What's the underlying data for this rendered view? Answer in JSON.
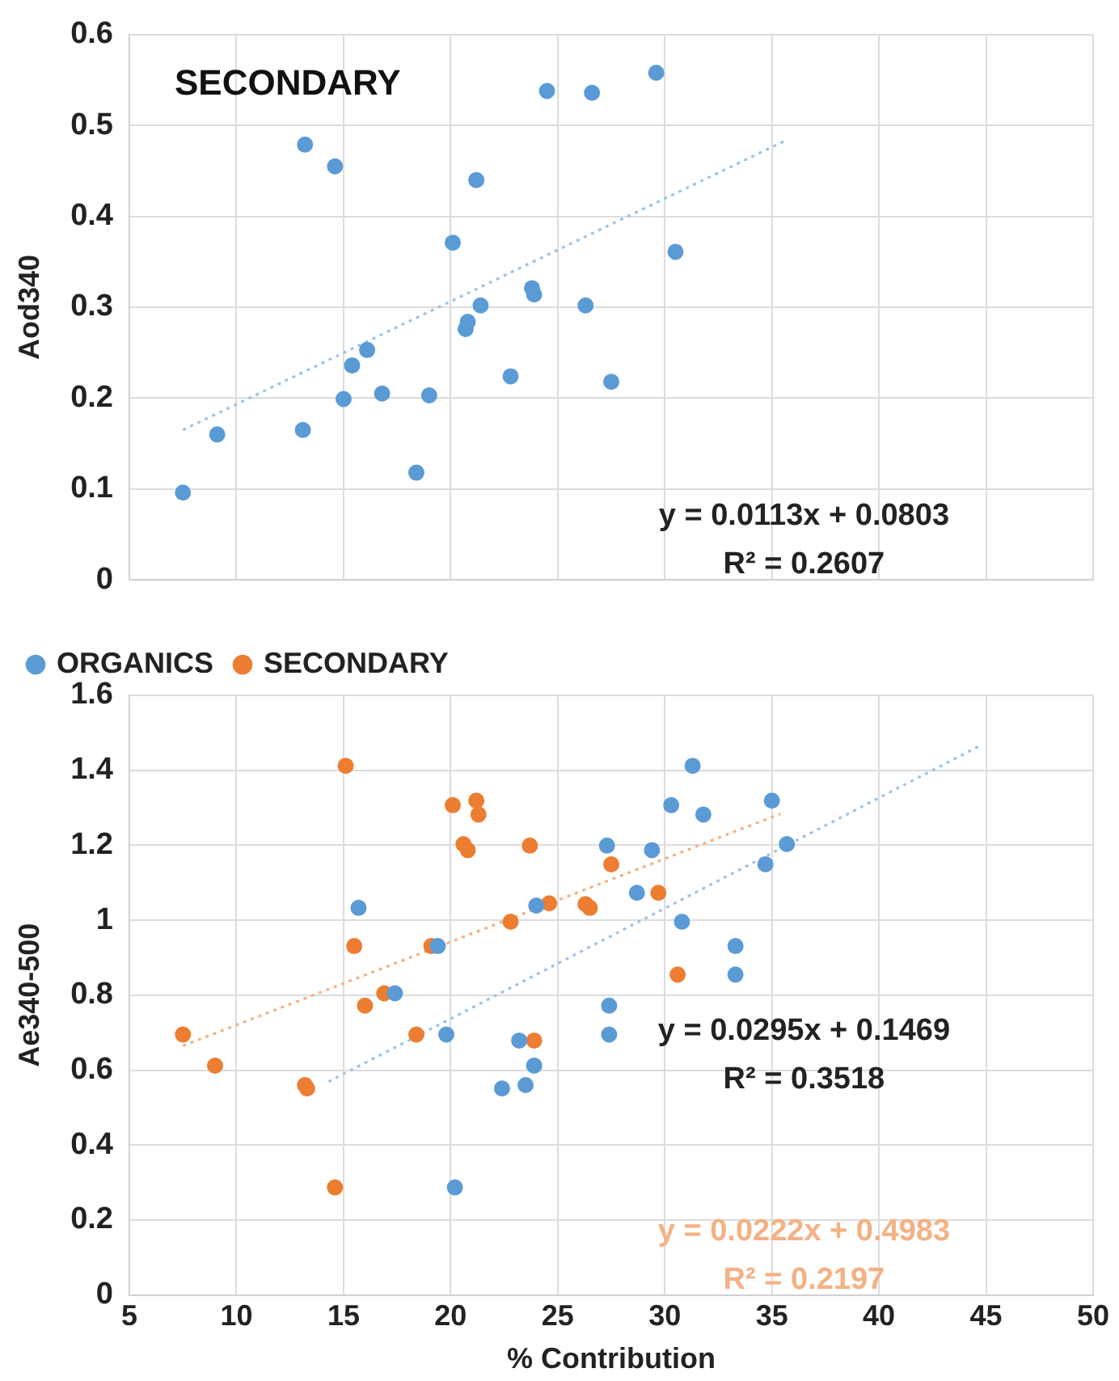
{
  "chart_data": [
    {
      "type": "scatter",
      "title": "SECONDARY",
      "ylabel": "Aod340",
      "xlim": [
        5,
        50
      ],
      "xticks": [
        5,
        10,
        15,
        20,
        25,
        30,
        35,
        40,
        45,
        50
      ],
      "ylim": [
        0,
        0.6
      ],
      "yticks": [
        0,
        0.1,
        0.2,
        0.3,
        0.4,
        0.5,
        0.6
      ],
      "grid": true,
      "tick_labels": "y",
      "marker": "circle",
      "annotations": [
        "y = 0.0113x + 0.0803",
        "R² = 0.2607"
      ],
      "series": [
        {
          "color": "#5b9bd5",
          "x": [
            13.2,
            14.6,
            24.5,
            26.6,
            29.6,
            21.2,
            20.1,
            30.5,
            7.5,
            9.1,
            13.1,
            15.0,
            15.4,
            16.1,
            16.8,
            19.0,
            18.4,
            20.7,
            20.8,
            21.4,
            22.8,
            23.8,
            23.9,
            26.3,
            27.5
          ],
          "values": [
            0.479,
            0.455,
            0.538,
            0.536,
            0.558,
            0.44,
            0.371,
            0.361,
            0.096,
            0.16,
            0.165,
            0.199,
            0.236,
            0.253,
            0.205,
            0.203,
            0.118,
            0.276,
            0.284,
            0.302,
            0.224,
            0.321,
            0.314,
            0.302,
            0.218
          ]
        },
        {
          "type": "line",
          "color": "#9dc3e6",
          "line_style": "dotted",
          "marker": "none",
          "x": [
            7.5,
            35.6
          ],
          "values": [
            0.165,
            0.483
          ]
        }
      ]
    },
    {
      "type": "scatter",
      "xlabel": "% Contribution",
      "ylabel": "Ae340-500",
      "xlim": [
        5,
        50
      ],
      "xticks": [
        5,
        10,
        15,
        20,
        25,
        30,
        35,
        40,
        45,
        50
      ],
      "ylim": [
        0,
        1.6
      ],
      "yticks": [
        0,
        0.2,
        0.4,
        0.6,
        0.8,
        1,
        1.2,
        1.4,
        1.6
      ],
      "grid": true,
      "legend": "top left",
      "marker": "circle",
      "annotations": [
        "y = 0.0295x + 0.1469",
        "R² = 0.3518",
        "y = 0.0222x + 0.4983",
        "R² = 0.2197"
      ],
      "series": [
        {
          "name": "ORGANICS",
          "color": "#5b9bd5",
          "x": [
            15.7,
            24.0,
            27.3,
            28.7,
            29.4,
            30.3,
            31.3,
            31.8,
            35.0,
            35.7,
            34.7,
            30.8,
            19.4,
            17.4,
            19.8,
            23.2,
            23.9,
            23.5,
            22.4,
            27.4,
            27.4,
            33.3,
            33.3,
            20.2
          ],
          "values": [
            1.033,
            1.039,
            1.199,
            1.073,
            1.187,
            1.307,
            1.412,
            1.282,
            1.319,
            1.203,
            1.149,
            0.996,
            0.931,
            0.805,
            0.695,
            0.679,
            0.612,
            0.56,
            0.551,
            0.772,
            0.695,
            0.931,
            0.855,
            0.287
          ]
        },
        {
          "name": "SECONDARY",
          "color": "#ed7d31",
          "x": [
            15.1,
            20.1,
            21.2,
            21.3,
            20.6,
            20.8,
            23.7,
            27.5,
            29.7,
            24.6,
            26.3,
            26.5,
            22.8,
            15.5,
            19.1,
            16.9,
            16.0,
            18.4,
            23.9,
            7.5,
            9.0,
            13.2,
            13.3,
            30.6,
            14.6
          ],
          "values": [
            1.412,
            1.307,
            1.319,
            1.282,
            1.203,
            1.187,
            1.199,
            1.149,
            1.073,
            1.045,
            1.043,
            1.033,
            0.996,
            0.931,
            0.931,
            0.805,
            0.772,
            0.695,
            0.679,
            0.695,
            0.612,
            0.56,
            0.551,
            0.855,
            0.287
          ]
        },
        {
          "type": "line",
          "color": "#9dc3e6",
          "line_style": "dotted",
          "marker": "none",
          "x": [
            14.3,
            44.8
          ],
          "values": [
            0.569,
            1.468
          ]
        },
        {
          "type": "line",
          "color": "#f4b183",
          "line_style": "dotted",
          "marker": "none",
          "x": [
            7.5,
            35.4
          ],
          "values": [
            0.665,
            1.284
          ]
        }
      ]
    }
  ]
}
